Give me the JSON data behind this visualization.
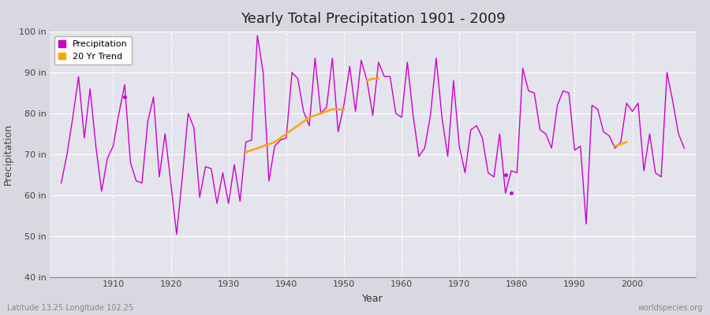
{
  "title": "Yearly Total Precipitation 1901 - 2009",
  "xlabel": "Year",
  "ylabel": "Precipitation",
  "lat_lon_label": "Latitude 13.25 Longitude 102.25",
  "watermark": "worldspecies.org",
  "ylim": [
    40,
    100
  ],
  "yticks": [
    40,
    50,
    60,
    70,
    80,
    90,
    100
  ],
  "ytick_labels": [
    "40 in",
    "50 in",
    "60 in",
    "70 in",
    "80 in",
    "90 in",
    "100 in"
  ],
  "xlim": [
    1899,
    2011
  ],
  "xticks": [
    1910,
    1920,
    1930,
    1940,
    1950,
    1960,
    1970,
    1980,
    1990,
    2000
  ],
  "precip_color": "#CC00CC",
  "trend_color": "#FFA500",
  "fig_bg_color": "#D8D8E0",
  "plot_bg_color": "#E4E4EC",
  "grid_color": "#FFFFFF",
  "years": [
    1901,
    1902,
    1903,
    1904,
    1905,
    1906,
    1907,
    1908,
    1909,
    1910,
    1911,
    1912,
    1913,
    1914,
    1915,
    1916,
    1917,
    1918,
    1919,
    1920,
    1921,
    1922,
    1923,
    1924,
    1925,
    1926,
    1927,
    1928,
    1929,
    1930,
    1931,
    1932,
    1933,
    1934,
    1935,
    1936,
    1937,
    1938,
    1939,
    1940,
    1941,
    1942,
    1943,
    1944,
    1945,
    1946,
    1947,
    1948,
    1949,
    1950,
    1951,
    1952,
    1953,
    1954,
    1955,
    1956,
    1957,
    1958,
    1959,
    1960,
    1961,
    1962,
    1963,
    1964,
    1965,
    1966,
    1967,
    1968,
    1969,
    1970,
    1971,
    1972,
    1973,
    1974,
    1975,
    1976,
    1977,
    1978,
    1979,
    1980,
    1981,
    1982,
    1983,
    1984,
    1985,
    1986,
    1987,
    1988,
    1989,
    1990,
    1991,
    1992,
    1993,
    1994,
    1995,
    1996,
    1997,
    1998,
    1999,
    2000,
    2001,
    2002,
    2003,
    2004,
    2005,
    2006,
    2007,
    2008,
    2009
  ],
  "precip": [
    63.0,
    70.0,
    79.0,
    89.0,
    74.0,
    86.0,
    72.0,
    61.0,
    69.0,
    72.0,
    80.0,
    87.0,
    68.0,
    63.5,
    63.0,
    78.0,
    84.0,
    64.5,
    75.0,
    63.0,
    50.5,
    64.5,
    80.0,
    76.5,
    59.5,
    67.0,
    66.5,
    58.0,
    65.5,
    58.0,
    67.5,
    58.5,
    73.0,
    73.5,
    99.0,
    90.0,
    63.5,
    72.0,
    73.5,
    74.0,
    90.0,
    88.5,
    80.5,
    77.0,
    93.5,
    80.0,
    81.5,
    93.5,
    75.5,
    82.0,
    91.5,
    80.5,
    93.0,
    88.0,
    79.5,
    92.5,
    89.0,
    89.0,
    80.0,
    79.0,
    92.5,
    79.5,
    69.5,
    71.5,
    79.5,
    93.5,
    79.0,
    69.5,
    88.0,
    72.0,
    65.5,
    76.0,
    77.0,
    74.0,
    65.5,
    64.5,
    75.0,
    60.5,
    66.0,
    65.5,
    91.0,
    85.5,
    85.0,
    76.0,
    75.0,
    71.5,
    82.0,
    85.5,
    85.0,
    71.0,
    72.0,
    53.0,
    82.0,
    81.0,
    75.5,
    74.5,
    71.5,
    73.0,
    82.5,
    80.5,
    82.5,
    66.0,
    75.0,
    65.5,
    64.5,
    90.0,
    83.0,
    75.0,
    71.5
  ],
  "trend_seg1_years": [
    1933,
    1934,
    1935,
    1936,
    1937,
    1938,
    1939,
    1940,
    1941,
    1942,
    1943,
    1944,
    1945,
    1946,
    1947,
    1948,
    1949,
    1950
  ],
  "trend_seg1_vals": [
    70.5,
    71.0,
    71.5,
    72.0,
    72.5,
    73.0,
    74.0,
    75.0,
    76.0,
    77.0,
    78.0,
    79.0,
    79.5,
    80.0,
    80.5,
    81.0,
    81.0,
    81.0
  ],
  "trend_seg2_years": [
    1954,
    1955,
    1956
  ],
  "trend_seg2_vals": [
    88.0,
    88.5,
    88.5
  ],
  "trend_seg3_years": [
    1997,
    1998,
    1999
  ],
  "trend_seg3_vals": [
    72.0,
    72.5,
    73.0
  ],
  "isolated_dot_years": [
    1912,
    1978,
    1979
  ],
  "isolated_dot_vals": [
    84.0,
    65.0,
    60.5
  ]
}
